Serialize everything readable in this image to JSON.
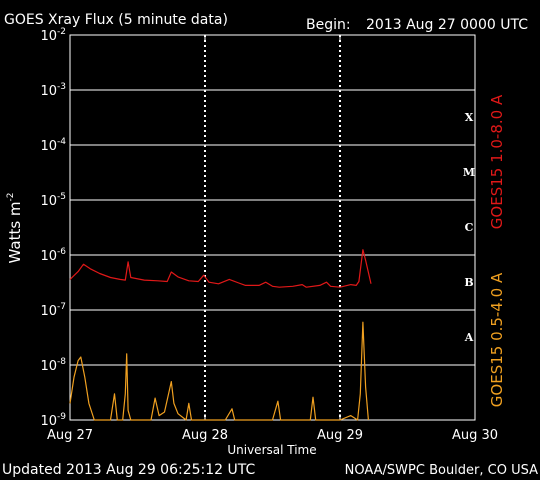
{
  "chart_data": {
    "type": "line",
    "title": "GOES Xray Flux (5 minute data)",
    "begin_label": "Begin:",
    "begin_value": "2013 Aug 27 0000 UTC",
    "xlabel": "Universal Time",
    "ylabel_base": "Watts m",
    "ylabel_exp": "-2",
    "x_tick_labels": [
      "Aug 27",
      "Aug 28",
      "Aug 29",
      "Aug 30"
    ],
    "x_range_days": [
      0,
      3
    ],
    "y_scale": "log",
    "ylim": [
      1e-09,
      0.01
    ],
    "y_ticks": [
      {
        "base": "10",
        "exp": "-2",
        "value": 0.01
      },
      {
        "base": "10",
        "exp": "-3",
        "value": 0.001
      },
      {
        "base": "10",
        "exp": "-4",
        "value": 0.0001
      },
      {
        "base": "10",
        "exp": "-5",
        "value": 1e-05
      },
      {
        "base": "10",
        "exp": "-6",
        "value": 1e-06
      },
      {
        "base": "10",
        "exp": "-7",
        "value": 1e-07
      },
      {
        "base": "10",
        "exp": "-8",
        "value": 1e-08
      },
      {
        "base": "10",
        "exp": "-9",
        "value": 1e-09
      }
    ],
    "flare_classes": [
      {
        "label": "X",
        "value": 0.00032
      },
      {
        "label": "M",
        "value": 3.2e-05
      },
      {
        "label": "C",
        "value": 3.2e-06
      },
      {
        "label": "B",
        "value": 3.2e-07
      },
      {
        "label": "A",
        "value": 3.2e-08
      }
    ],
    "grid": true,
    "series": [
      {
        "name": "GOES15 1.0-8.0 A",
        "color": "#e01818",
        "points": [
          [
            0.0,
            3.6e-07
          ],
          [
            0.06,
            5e-07
          ],
          [
            0.1,
            6.8e-07
          ],
          [
            0.15,
            5.6e-07
          ],
          [
            0.22,
            4.6e-07
          ],
          [
            0.3,
            3.9e-07
          ],
          [
            0.37,
            3.6e-07
          ],
          [
            0.41,
            3.5e-07
          ],
          [
            0.43,
            7.5e-07
          ],
          [
            0.45,
            3.9e-07
          ],
          [
            0.55,
            3.5e-07
          ],
          [
            0.65,
            3.4e-07
          ],
          [
            0.72,
            3.3e-07
          ],
          [
            0.75,
            4.9e-07
          ],
          [
            0.8,
            4e-07
          ],
          [
            0.88,
            3.4e-07
          ],
          [
            0.95,
            3.3e-07
          ],
          [
            0.99,
            4.3e-07
          ],
          [
            1.03,
            3.2e-07
          ],
          [
            1.1,
            3e-07
          ],
          [
            1.18,
            3.6e-07
          ],
          [
            1.25,
            3.1e-07
          ],
          [
            1.3,
            2.8e-07
          ],
          [
            1.4,
            2.8e-07
          ],
          [
            1.45,
            3.2e-07
          ],
          [
            1.5,
            2.7e-07
          ],
          [
            1.55,
            2.6e-07
          ],
          [
            1.65,
            2.7e-07
          ],
          [
            1.72,
            2.9e-07
          ],
          [
            1.75,
            2.6e-07
          ],
          [
            1.85,
            2.8e-07
          ],
          [
            1.9,
            3.2e-07
          ],
          [
            1.93,
            2.7e-07
          ],
          [
            2.0,
            2.6e-07
          ],
          [
            2.08,
            2.9e-07
          ],
          [
            2.12,
            2.8e-07
          ],
          [
            2.14,
            3.3e-07
          ],
          [
            2.17,
            1.25e-06
          ],
          [
            2.19,
            8e-07
          ],
          [
            2.23,
            3e-07
          ]
        ]
      },
      {
        "name": "GOES15 0.5-4.0 A",
        "color": "#f0a020",
        "points": [
          [
            0.0,
            2e-09
          ],
          [
            0.03,
            6e-09
          ],
          [
            0.06,
            1.2e-08
          ],
          [
            0.08,
            1.4e-08
          ],
          [
            0.11,
            6e-09
          ],
          [
            0.14,
            2e-09
          ],
          [
            0.18,
            1e-09
          ],
          [
            0.3,
            1e-09
          ],
          [
            0.33,
            3e-09
          ],
          [
            0.35,
            1e-09
          ],
          [
            0.39,
            1e-09
          ],
          [
            0.41,
            3e-09
          ],
          [
            0.42,
            1.6e-08
          ],
          [
            0.43,
            1.5e-09
          ],
          [
            0.45,
            1e-09
          ],
          [
            0.6,
            1e-09
          ],
          [
            0.63,
            2.5e-09
          ],
          [
            0.66,
            1.2e-09
          ],
          [
            0.7,
            1.4e-09
          ],
          [
            0.75,
            5e-09
          ],
          [
            0.77,
            2e-09
          ],
          [
            0.8,
            1.3e-09
          ],
          [
            0.86,
            1e-09
          ],
          [
            0.88,
            2e-09
          ],
          [
            0.9,
            1e-09
          ],
          [
            1.15,
            1e-09
          ],
          [
            1.2,
            1.6e-09
          ],
          [
            1.22,
            1e-09
          ],
          [
            1.5,
            1e-09
          ],
          [
            1.54,
            2.2e-09
          ],
          [
            1.56,
            1e-09
          ],
          [
            1.78,
            1e-09
          ],
          [
            1.8,
            2.6e-09
          ],
          [
            1.82,
            1e-09
          ],
          [
            2.0,
            1e-09
          ],
          [
            2.08,
            1.2e-09
          ],
          [
            2.13,
            1e-09
          ],
          [
            2.15,
            3e-09
          ],
          [
            2.17,
            6e-08
          ],
          [
            2.19,
            4e-09
          ],
          [
            2.21,
            1e-09
          ]
        ]
      }
    ]
  },
  "footer": {
    "updated": "Updated 2013 Aug 29 06:25:12 UTC",
    "credit": "NOAA/SWPC Boulder, CO USA"
  }
}
